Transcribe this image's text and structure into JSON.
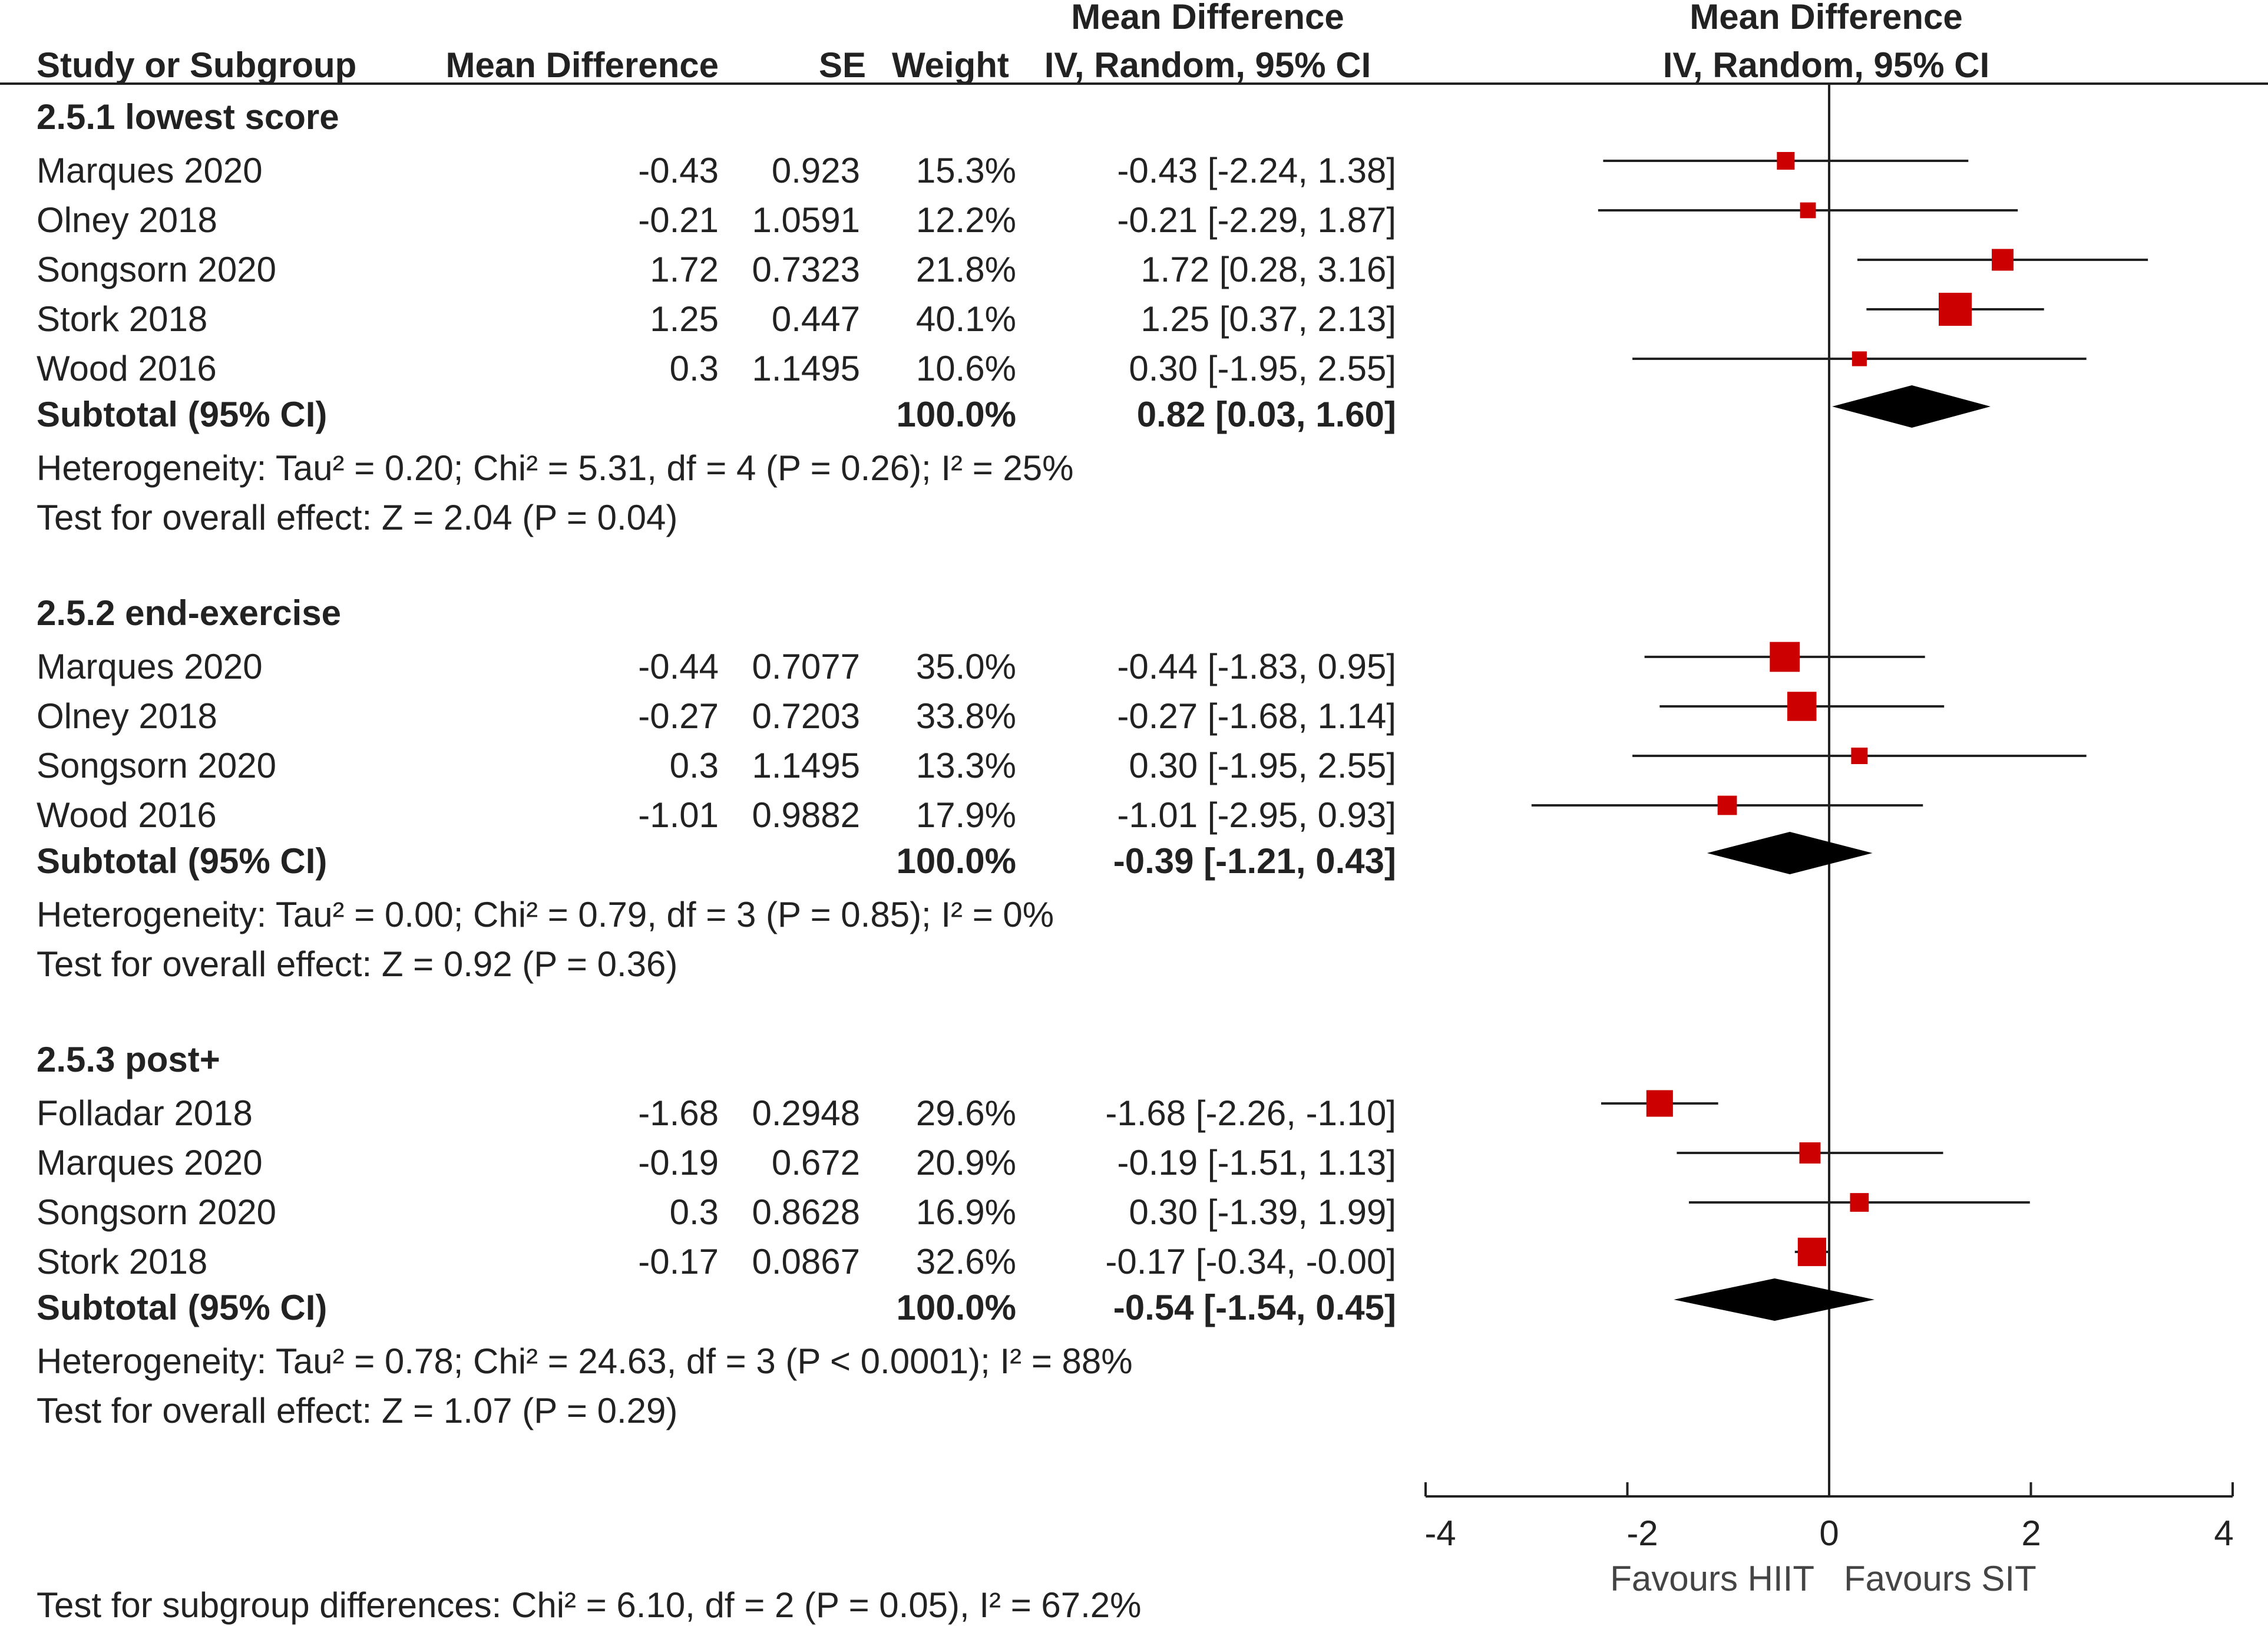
{
  "header": {
    "study": "Study or Subgroup",
    "md": "Mean Difference",
    "se": "SE",
    "weight": "Weight",
    "ci_top": "Mean Difference",
    "ci_bottom": "IV, Random, 95% CI",
    "plot_top": "Mean Difference",
    "plot_bottom": "IV, Random, 95% CI"
  },
  "footer": {
    "subgroup_test": "Test for subgroup differences: Chi² = 6.10, df = 2 (P = 0.05), I² = 67.2%"
  },
  "chart_data": {
    "type": "forest",
    "x_range": [
      -4,
      4
    ],
    "x_ticks": [
      "-4",
      "-2",
      "0",
      "2",
      "4"
    ],
    "favours_left": "Favours HIIT",
    "favours_right": "Favours SIT",
    "marker_color": "#cc0000",
    "groups": [
      {
        "title": "2.5.1 lowest score",
        "studies": [
          {
            "name": "Marques 2020",
            "md": "-0.43",
            "se": "0.923",
            "weight": "15.3%",
            "ci": "-0.43 [-2.24, 1.38]",
            "est": -0.43,
            "lo": -2.24,
            "hi": 1.38,
            "w": 15.3
          },
          {
            "name": "Olney 2018",
            "md": "-0.21",
            "se": "1.0591",
            "weight": "12.2%",
            "ci": "-0.21 [-2.29, 1.87]",
            "est": -0.21,
            "lo": -2.29,
            "hi": 1.87,
            "w": 12.2
          },
          {
            "name": "Songsorn 2020",
            "md": "1.72",
            "se": "0.7323",
            "weight": "21.8%",
            "ci": "1.72 [0.28, 3.16]",
            "est": 1.72,
            "lo": 0.28,
            "hi": 3.16,
            "w": 21.8
          },
          {
            "name": "Stork 2018",
            "md": "1.25",
            "se": "0.447",
            "weight": "40.1%",
            "ci": "1.25 [0.37, 2.13]",
            "est": 1.25,
            "lo": 0.37,
            "hi": 2.13,
            "w": 40.1
          },
          {
            "name": "Wood 2016",
            "md": "0.3",
            "se": "1.1495",
            "weight": "10.6%",
            "ci": "0.30 [-1.95, 2.55]",
            "est": 0.3,
            "lo": -1.95,
            "hi": 2.55,
            "w": 10.6
          }
        ],
        "subtotal": {
          "label": "Subtotal (95% CI)",
          "weight": "100.0%",
          "ci": "0.82 [0.03, 1.60]",
          "est": 0.82,
          "lo": 0.03,
          "hi": 1.6
        },
        "heterogeneity": "Heterogeneity: Tau² = 0.20; Chi² = 5.31, df = 4 (P = 0.26); I² = 25%",
        "overall": "Test for overall effect: Z = 2.04 (P = 0.04)"
      },
      {
        "title": "2.5.2 end-exercise",
        "studies": [
          {
            "name": "Marques 2020",
            "md": "-0.44",
            "se": "0.7077",
            "weight": "35.0%",
            "ci": "-0.44 [-1.83, 0.95]",
            "est": -0.44,
            "lo": -1.83,
            "hi": 0.95,
            "w": 35.0
          },
          {
            "name": "Olney 2018",
            "md": "-0.27",
            "se": "0.7203",
            "weight": "33.8%",
            "ci": "-0.27 [-1.68, 1.14]",
            "est": -0.27,
            "lo": -1.68,
            "hi": 1.14,
            "w": 33.8
          },
          {
            "name": "Songsorn 2020",
            "md": "0.3",
            "se": "1.1495",
            "weight": "13.3%",
            "ci": "0.30 [-1.95, 2.55]",
            "est": 0.3,
            "lo": -1.95,
            "hi": 2.55,
            "w": 13.3
          },
          {
            "name": "Wood 2016",
            "md": "-1.01",
            "se": "0.9882",
            "weight": "17.9%",
            "ci": "-1.01 [-2.95, 0.93]",
            "est": -1.01,
            "lo": -2.95,
            "hi": 0.93,
            "w": 17.9
          }
        ],
        "subtotal": {
          "label": "Subtotal (95% CI)",
          "weight": "100.0%",
          "ci": "-0.39 [-1.21, 0.43]",
          "est": -0.39,
          "lo": -1.21,
          "hi": 0.43
        },
        "heterogeneity": "Heterogeneity: Tau² = 0.00; Chi² = 0.79, df = 3 (P = 0.85); I² = 0%",
        "overall": "Test for overall effect: Z = 0.92 (P = 0.36)"
      },
      {
        "title": "2.5.3 post+",
        "studies": [
          {
            "name": "Folladar 2018",
            "md": "-1.68",
            "se": "0.2948",
            "weight": "29.6%",
            "ci": "-1.68 [-2.26, -1.10]",
            "est": -1.68,
            "lo": -2.26,
            "hi": -1.1,
            "w": 29.6
          },
          {
            "name": "Marques 2020",
            "md": "-0.19",
            "se": "0.672",
            "weight": "20.9%",
            "ci": "-0.19 [-1.51, 1.13]",
            "est": -0.19,
            "lo": -1.51,
            "hi": 1.13,
            "w": 20.9
          },
          {
            "name": "Songsorn 2020",
            "md": "0.3",
            "se": "0.8628",
            "weight": "16.9%",
            "ci": "0.30 [-1.39, 1.99]",
            "est": 0.3,
            "lo": -1.39,
            "hi": 1.99,
            "w": 16.9
          },
          {
            "name": "Stork 2018",
            "md": "-0.17",
            "se": "0.0867",
            "weight": "32.6%",
            "ci": "-0.17 [-0.34, -0.00]",
            "est": -0.17,
            "lo": -0.34,
            "hi": -0.0,
            "w": 32.6
          }
        ],
        "subtotal": {
          "label": "Subtotal (95% CI)",
          "weight": "100.0%",
          "ci": "-0.54 [-1.54, 0.45]",
          "est": -0.54,
          "lo": -1.54,
          "hi": 0.45
        },
        "heterogeneity": "Heterogeneity: Tau² = 0.78; Chi² = 24.63, df = 3 (P < 0.0001); I² = 88%",
        "overall": "Test for overall effect: Z = 1.07 (P = 0.29)"
      }
    ]
  }
}
